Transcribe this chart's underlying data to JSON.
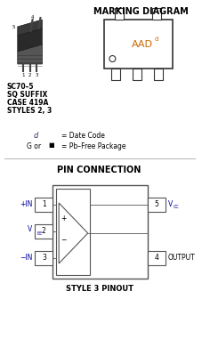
{
  "title_marking": "MARKING DIAGRAM",
  "title_pin": "PIN CONNECTION",
  "subtitle_style": "STYLE 3 PINOUT",
  "sc_text_lines": [
    "SC70–5",
    "SQ SUFFIX",
    "CASE 419A",
    "STYLES 2, 3"
  ],
  "legend_d_text": "d",
  "legend_d_rest": "= Date Code",
  "legend_g_text": "G or ■",
  "legend_g_rest": "= Pb–Free Package",
  "bg_color": "#ffffff",
  "text_color": "#000000",
  "orange_color": "#cc6600",
  "blue_color": "#000099",
  "box_color": "#555555",
  "divider_color": "#bbbbbb",
  "chip_dark": "#1a1a1a",
  "chip_mid": "#3a3a3a",
  "chip_light": "#555555"
}
